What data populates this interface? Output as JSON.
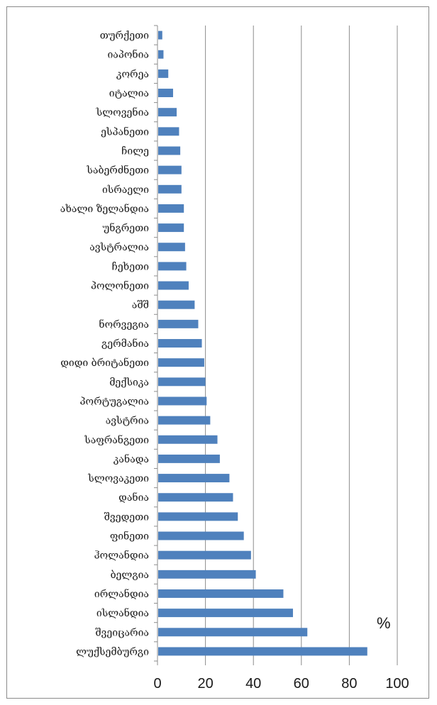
{
  "chart_data": {
    "type": "bar",
    "orientation": "horizontal",
    "categories": [
      "თურქეთი",
      "იაპონია",
      "კორეა",
      "იტალია",
      "სლოვენია",
      "ესპანეთი",
      "ჩილე",
      "საბერძნეთი",
      "ისრაელი",
      "ახალი ზელანდია",
      "უნგრეთი",
      "ავსტრალია",
      "ჩეხეთი",
      "პოლონეთი",
      "აშშ",
      "ნორვეგია",
      "გერმანია",
      "დიდი ბრიტანეთი",
      "მექსიკა",
      "პორტუგალია",
      "ავსტრია",
      "საფრანგეთი",
      "კანადა",
      "სლოვაკეთი",
      "დანია",
      "შვედეთი",
      "ფინეთი",
      "ჰოლანდია",
      "ბელგია",
      "ირლანდია",
      "ისლანდია",
      "შვეიცარია",
      "ლუქსემბურგი"
    ],
    "values": [
      2,
      2.5,
      4.5,
      6.5,
      8,
      9,
      9.5,
      10,
      10,
      11,
      11,
      11.5,
      12,
      13,
      15.5,
      17,
      18.5,
      19.5,
      20,
      20.5,
      22,
      25,
      26,
      30,
      31.5,
      33.5,
      36,
      39,
      41,
      52.5,
      56.5,
      62.5,
      87.5
    ],
    "xlim": [
      0,
      100
    ],
    "xticks": [
      "0",
      "20",
      "40",
      "60",
      "80",
      "100"
    ],
    "unit": "%",
    "grid": "vertical",
    "bar_color": "#4f81bd"
  }
}
